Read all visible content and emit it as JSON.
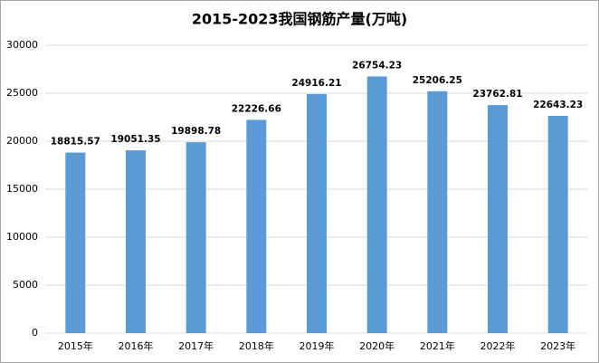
{
  "chart_data": {
    "type": "bar",
    "title": "2015-2023我国钢筋产量(万吨)",
    "categories": [
      "2015年",
      "2016年",
      "2017年",
      "2018年",
      "2019年",
      "2020年",
      "2021年",
      "2022年",
      "2023年"
    ],
    "values": [
      18815.57,
      19051.35,
      19898.78,
      22226.66,
      24916.21,
      26754.23,
      25206.25,
      23762.81,
      22643.23
    ],
    "color": "#5b9bd5",
    "ylim": [
      0,
      30000
    ],
    "yticks": [
      0,
      5000,
      10000,
      15000,
      20000,
      25000,
      30000
    ],
    "grid": true
  }
}
